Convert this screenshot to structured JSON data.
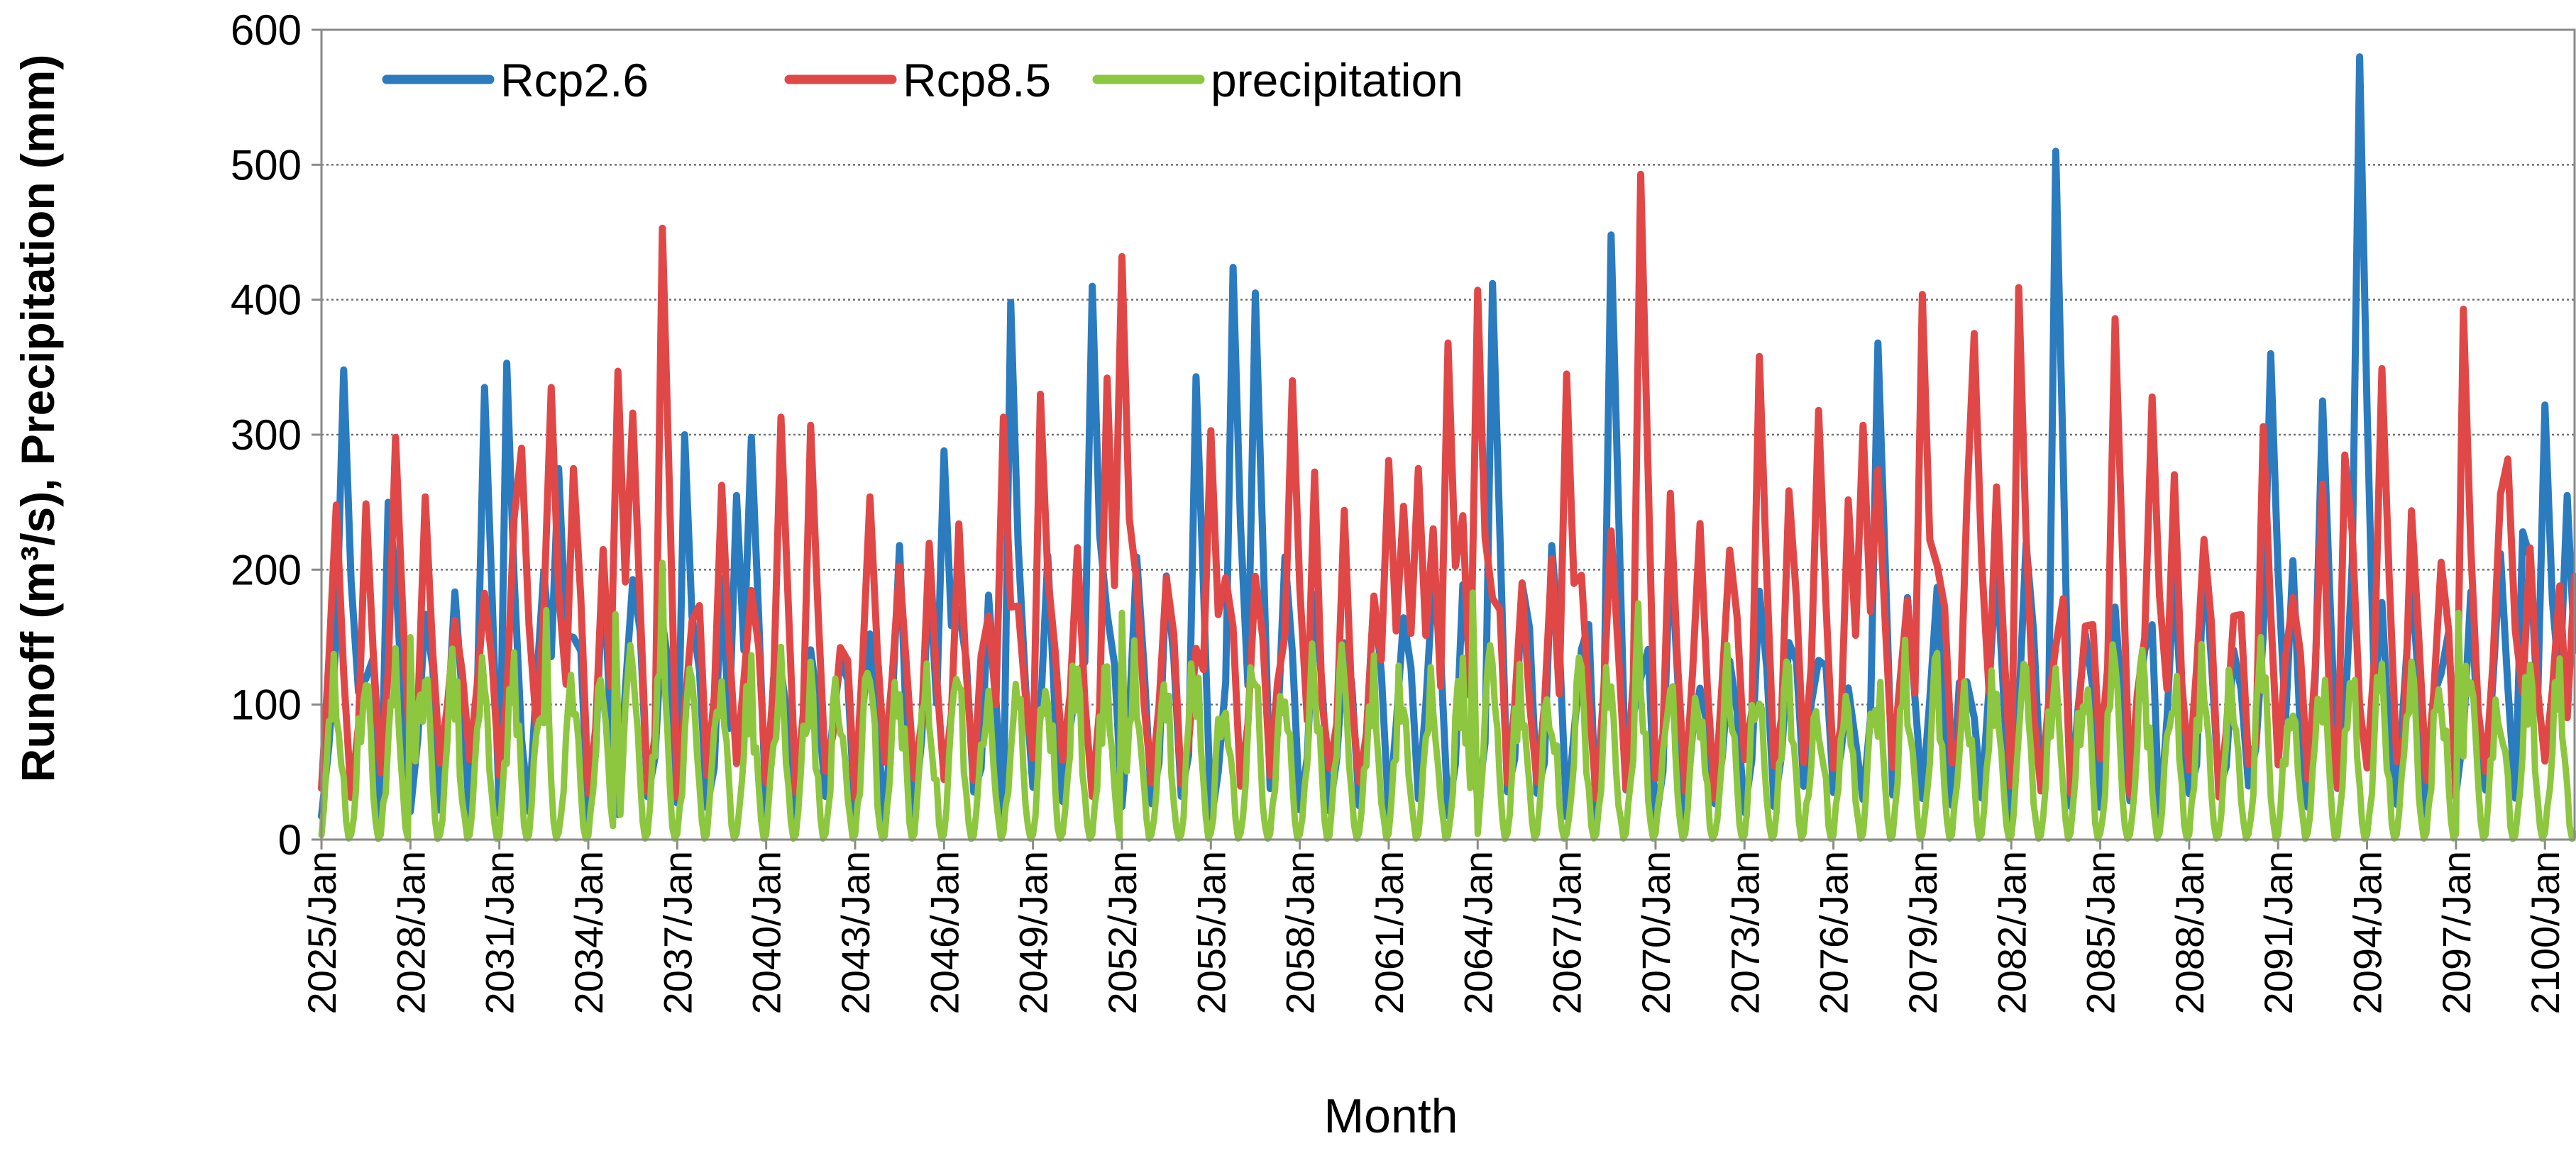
{
  "chart_data": {
    "type": "line",
    "title": "",
    "xlabel": "Month",
    "ylabel": "Runoff (m³/s), Precipitation (mm)",
    "ylim": [
      0,
      600
    ],
    "yticks": [
      0,
      100,
      200,
      300,
      400,
      500,
      600
    ],
    "xlim": [
      2025,
      2101
    ],
    "x_tick_labels": [
      "2025/Jan",
      "2028/Jan",
      "2031/Jan",
      "2034/Jan",
      "2037/Jan",
      "2040/Jan",
      "2043/Jan",
      "2046/Jan",
      "2049/Jan",
      "2052/Jan",
      "2055/Jan",
      "2058/Jan",
      "2061/Jan",
      "2064/Jan",
      "2067/Jan",
      "2070/Jan",
      "2073/Jan",
      "2076/Jan",
      "2079/Jan",
      "2082/Jan",
      "2085/Jan",
      "2088/Jan",
      "2091/Jan",
      "2094/Jan",
      "2097/Jan",
      "2100/Jan"
    ],
    "grid": "horizontal dotted",
    "legend_position": "top-left",
    "series": [
      {
        "name": "Rcp2.6",
        "color": "#2B7BBF",
        "resolution": "seasonal (4 points per year)",
        "peaks": [
          {
            "x": 2025.8,
            "y": 348
          },
          {
            "x": 2027.3,
            "y": 250
          },
          {
            "x": 2030.4,
            "y": 335
          },
          {
            "x": 2031.3,
            "y": 353
          },
          {
            "x": 2033.0,
            "y": 275
          },
          {
            "x": 2037.3,
            "y": 300
          },
          {
            "x": 2038.9,
            "y": 255
          },
          {
            "x": 2039.6,
            "y": 298
          },
          {
            "x": 2045.9,
            "y": 288
          },
          {
            "x": 2048.3,
            "y": 398
          },
          {
            "x": 2051.1,
            "y": 410
          },
          {
            "x": 2054.6,
            "y": 343
          },
          {
            "x": 2055.7,
            "y": 424
          },
          {
            "x": 2056.6,
            "y": 405
          },
          {
            "x": 2064.6,
            "y": 412
          },
          {
            "x": 2068.4,
            "y": 448
          },
          {
            "x": 2077.6,
            "y": 368
          },
          {
            "x": 2083.5,
            "y": 510
          },
          {
            "x": 2090.8,
            "y": 360
          },
          {
            "x": 2092.6,
            "y": 325
          },
          {
            "x": 2093.8,
            "y": 580
          },
          {
            "x": 2099.2,
            "y": 228
          },
          {
            "x": 2100.1,
            "y": 322
          },
          {
            "x": 2100.8,
            "y": 255
          }
        ],
        "typical_range": [
          10,
          200
        ]
      },
      {
        "name": "Rcp8.5",
        "color": "#E04848",
        "resolution": "seasonal (4 points per year)",
        "peaks": [
          {
            "x": 2027.6,
            "y": 298
          },
          {
            "x": 2028.6,
            "y": 254
          },
          {
            "x": 2031.7,
            "y": 290
          },
          {
            "x": 2032.7,
            "y": 335
          },
          {
            "x": 2035.0,
            "y": 347
          },
          {
            "x": 2035.6,
            "y": 316
          },
          {
            "x": 2036.5,
            "y": 453
          },
          {
            "x": 2040.5,
            "y": 313
          },
          {
            "x": 2041.6,
            "y": 307
          },
          {
            "x": 2043.4,
            "y": 254
          },
          {
            "x": 2047.9,
            "y": 313
          },
          {
            "x": 2049.2,
            "y": 330
          },
          {
            "x": 2051.4,
            "y": 342
          },
          {
            "x": 2051.9,
            "y": 432
          },
          {
            "x": 2055.0,
            "y": 303
          },
          {
            "x": 2057.7,
            "y": 340
          },
          {
            "x": 2061.0,
            "y": 281
          },
          {
            "x": 2061.9,
            "y": 275
          },
          {
            "x": 2062.9,
            "y": 368
          },
          {
            "x": 2063.9,
            "y": 407
          },
          {
            "x": 2066.9,
            "y": 345
          },
          {
            "x": 2069.4,
            "y": 493
          },
          {
            "x": 2073.4,
            "y": 358
          },
          {
            "x": 2075.4,
            "y": 318
          },
          {
            "x": 2077.0,
            "y": 307
          },
          {
            "x": 2078.9,
            "y": 404
          },
          {
            "x": 2080.7,
            "y": 375
          },
          {
            "x": 2082.2,
            "y": 409
          },
          {
            "x": 2085.6,
            "y": 386
          },
          {
            "x": 2086.8,
            "y": 328
          },
          {
            "x": 2090.4,
            "y": 306
          },
          {
            "x": 2093.2,
            "y": 285
          },
          {
            "x": 2094.5,
            "y": 349
          },
          {
            "x": 2097.3,
            "y": 393
          },
          {
            "x": 2098.8,
            "y": 282
          },
          {
            "x": 2100.9,
            "y": 195
          }
        ],
        "typical_range": [
          30,
          250
        ]
      },
      {
        "name": "precipitation",
        "color": "#8DC63F",
        "resolution": "monthly",
        "peaks": [
          {
            "x": 2028.0,
            "y": 150
          },
          {
            "x": 2032.6,
            "y": 170
          },
          {
            "x": 2034.9,
            "y": 167
          },
          {
            "x": 2036.5,
            "y": 205
          },
          {
            "x": 2052.0,
            "y": 168
          },
          {
            "x": 2063.8,
            "y": 183
          },
          {
            "x": 2069.4,
            "y": 175
          },
          {
            "x": 2090.4,
            "y": 150
          },
          {
            "x": 2097.1,
            "y": 168
          }
        ],
        "typical_range": [
          0,
          130
        ]
      }
    ]
  }
}
